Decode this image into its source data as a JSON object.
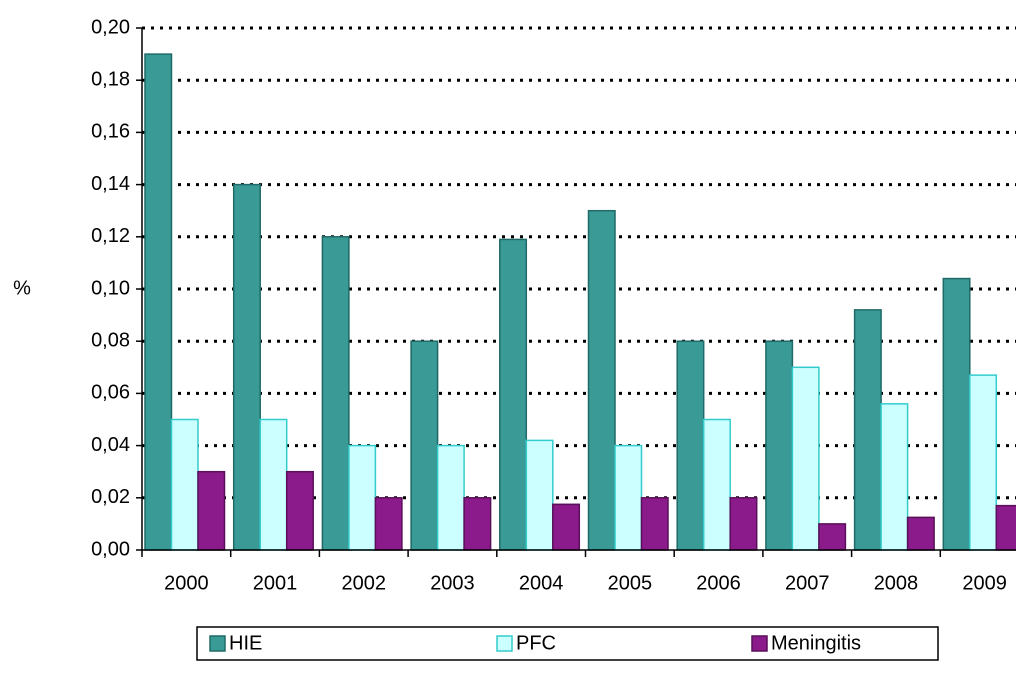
{
  "chart_data": {
    "type": "bar",
    "y_label": "%",
    "categories": [
      "2000",
      "2001",
      "2002",
      "2003",
      "2004",
      "2005",
      "2006",
      "2007",
      "2008",
      "2009"
    ],
    "series": [
      {
        "name": "HIE",
        "color": "#3a9a96",
        "values": [
          0.19,
          0.14,
          0.12,
          0.08,
          0.119,
          0.13,
          0.08,
          0.08,
          0.092,
          0.104
        ]
      },
      {
        "name": "PFC",
        "color": "#ccffff",
        "values": [
          0.05,
          0.05,
          0.04,
          0.04,
          0.042,
          0.04,
          0.05,
          0.07,
          0.056,
          0.067
        ]
      },
      {
        "name": "Meningitis",
        "color": "#8b1a8b",
        "values": [
          0.03,
          0.03,
          0.02,
          0.02,
          0.0175,
          0.02,
          0.02,
          0.01,
          0.0125,
          0.017
        ]
      }
    ],
    "ylim": [
      0,
      0.2
    ],
    "yticks": [
      {
        "value": 0,
        "label": "0,00"
      },
      {
        "value": 0.02,
        "label": "0,02"
      },
      {
        "value": 0.04,
        "label": "0,04"
      },
      {
        "value": 0.06,
        "label": "0,06"
      },
      {
        "value": 0.08,
        "label": "0,08"
      },
      {
        "value": 0.1,
        "label": "0,10"
      },
      {
        "value": 0.12,
        "label": "0,12"
      },
      {
        "value": 0.14,
        "label": "0,14"
      },
      {
        "value": 0.16,
        "label": "0,16"
      },
      {
        "value": 0.18,
        "label": "0,18"
      },
      {
        "value": 0.2,
        "label": "0,20"
      }
    ],
    "grid": true,
    "legend": "bottom"
  }
}
